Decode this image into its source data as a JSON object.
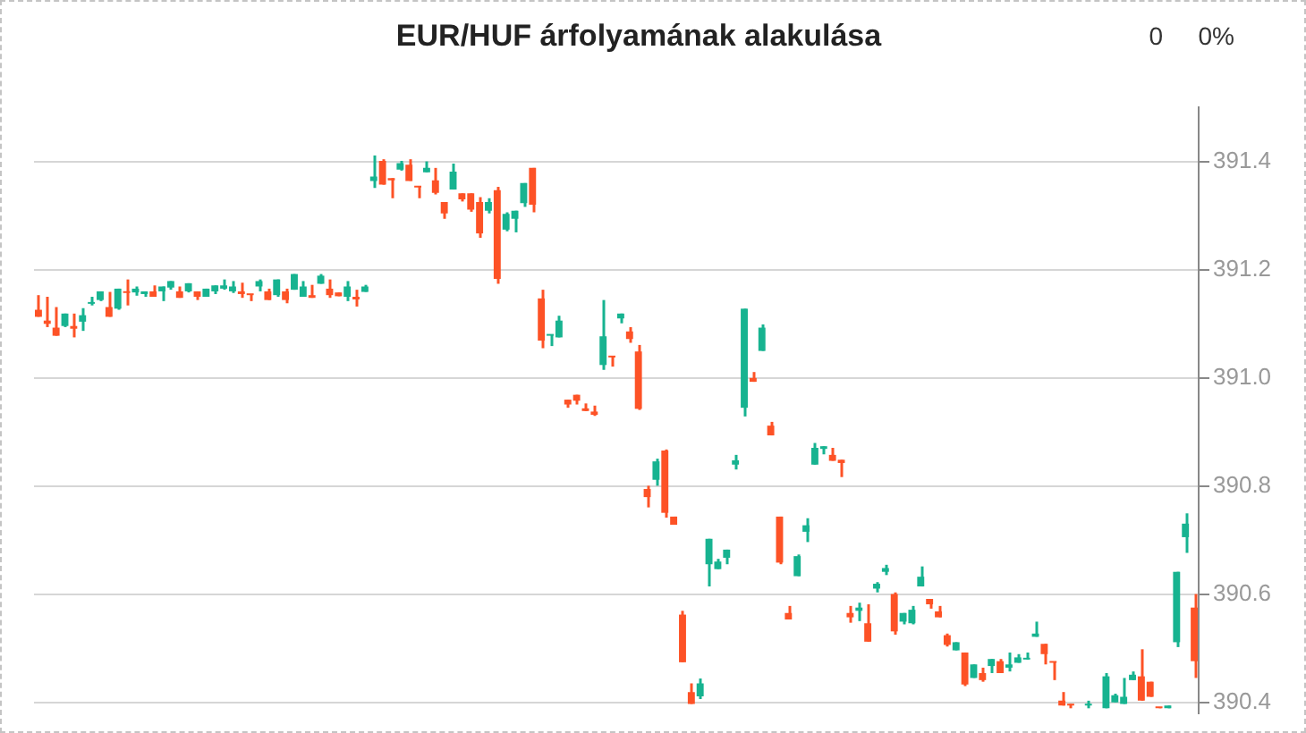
{
  "chart_data": {
    "type": "candlestick",
    "title": "EUR/HUF árfolyamának alakulása",
    "annotations": [
      "0",
      "0%"
    ],
    "categories": [
      null,
      null,
      null,
      null,
      null,
      null,
      null,
      null,
      null,
      null,
      null,
      null,
      null,
      null,
      null,
      null,
      null,
      null,
      null,
      null,
      null,
      null,
      null,
      null,
      null,
      null,
      null,
      null,
      null,
      null,
      null,
      null,
      null,
      null,
      null,
      null,
      null,
      null,
      null,
      null,
      null,
      null,
      null,
      null,
      null,
      null,
      null,
      null,
      null,
      null,
      null,
      null,
      null,
      null,
      null,
      null,
      null,
      null,
      null,
      null,
      null,
      null,
      null,
      null,
      null,
      null,
      null,
      null,
      null,
      null,
      null,
      null,
      null,
      null,
      null,
      null,
      null,
      null,
      null,
      null,
      null,
      null,
      null,
      null,
      null,
      null,
      null,
      null,
      null,
      null,
      null,
      null,
      null,
      null,
      null,
      null,
      null,
      null,
      null,
      null,
      null,
      null,
      null,
      null,
      null,
      null,
      null,
      null,
      null,
      null,
      null,
      null,
      null,
      null,
      null,
      null,
      null,
      null,
      null,
      null,
      null,
      null,
      null,
      null,
      null,
      null,
      null,
      null,
      null,
      null,
      null,
      null
    ],
    "ohlc": [
      [
        391.126,
        391.153,
        391.113,
        391.113
      ],
      [
        391.106,
        391.15,
        391.094,
        391.1
      ],
      [
        391.093,
        391.131,
        391.078,
        391.078
      ],
      [
        391.096,
        391.119,
        391.094,
        391.119
      ],
      [
        391.096,
        391.119,
        391.075,
        391.091
      ],
      [
        391.104,
        391.129,
        391.087,
        391.116
      ],
      [
        391.137,
        391.15,
        391.134,
        391.14
      ],
      [
        391.144,
        391.16,
        391.142,
        391.16
      ],
      [
        391.131,
        391.159,
        391.113,
        391.113
      ],
      [
        391.128,
        391.165,
        391.126,
        391.165
      ],
      [
        391.16,
        391.182,
        391.134,
        391.157
      ],
      [
        391.158,
        391.169,
        391.152,
        391.165
      ],
      [
        391.155,
        391.16,
        391.15,
        391.16
      ],
      [
        391.16,
        391.171,
        391.15,
        391.15
      ],
      [
        391.16,
        391.169,
        391.142,
        391.169
      ],
      [
        391.167,
        391.179,
        391.163,
        391.179
      ],
      [
        391.16,
        391.169,
        391.148,
        391.148
      ],
      [
        391.16,
        391.175,
        391.158,
        391.175
      ],
      [
        391.16,
        391.16,
        391.144,
        391.15
      ],
      [
        391.15,
        391.165,
        391.15,
        391.165
      ],
      [
        391.16,
        391.171,
        391.155,
        391.171
      ],
      [
        391.165,
        391.182,
        391.163,
        391.171
      ],
      [
        391.16,
        391.179,
        391.157,
        391.169
      ],
      [
        391.16,
        391.176,
        391.148,
        391.155
      ],
      [
        391.155,
        391.155,
        391.142,
        391.153
      ],
      [
        391.169,
        391.182,
        391.16,
        391.179
      ],
      [
        391.16,
        391.165,
        391.144,
        391.144
      ],
      [
        391.153,
        391.182,
        391.15,
        391.182
      ],
      [
        391.16,
        391.165,
        391.138,
        391.144
      ],
      [
        391.163,
        391.192,
        391.163,
        391.192
      ],
      [
        391.15,
        391.179,
        391.15,
        391.169
      ],
      [
        391.153,
        391.172,
        391.148,
        391.148
      ],
      [
        391.174,
        391.192,
        391.174,
        391.189
      ],
      [
        391.165,
        391.182,
        391.148,
        391.153
      ],
      [
        391.158,
        391.158,
        391.151,
        391.151
      ],
      [
        391.15,
        391.179,
        391.142,
        391.169
      ],
      [
        391.15,
        391.163,
        391.132,
        391.145
      ],
      [
        391.159,
        391.172,
        391.159,
        391.169
      ],
      [
        391.364,
        391.411,
        391.351,
        391.372
      ],
      [
        391.401,
        391.404,
        391.357,
        391.357
      ],
      [
        391.369,
        391.369,
        391.332,
        391.365
      ],
      [
        391.385,
        391.401,
        391.383,
        391.397
      ],
      [
        391.394,
        391.404,
        391.364,
        391.364
      ],
      [
        391.354,
        391.354,
        391.332,
        391.352
      ],
      [
        391.38,
        391.4,
        391.38,
        391.388
      ],
      [
        391.365,
        391.388,
        391.339,
        391.342
      ],
      [
        391.325,
        391.325,
        391.294,
        391.304
      ],
      [
        391.348,
        391.396,
        391.348,
        391.381
      ],
      [
        391.341,
        391.341,
        391.326,
        391.33
      ],
      [
        391.341,
        391.341,
        391.307,
        391.311
      ],
      [
        391.325,
        391.334,
        391.259,
        391.267
      ],
      [
        391.309,
        391.332,
        391.304,
        391.325
      ],
      [
        391.347,
        391.353,
        391.174,
        391.183
      ],
      [
        391.274,
        391.306,
        391.271,
        391.303
      ],
      [
        391.294,
        391.309,
        391.269,
        391.309
      ],
      [
        391.323,
        391.36,
        391.316,
        391.36
      ],
      [
        391.388,
        391.388,
        391.306,
        391.32
      ],
      [
        391.147,
        391.163,
        391.055,
        391.069
      ],
      [
        391.078,
        391.08,
        391.059,
        391.08
      ],
      [
        391.075,
        391.115,
        391.075,
        391.106
      ],
      [
        390.96,
        390.96,
        390.945,
        390.951
      ],
      [
        390.969,
        390.969,
        390.951,
        390.958
      ],
      [
        390.944,
        390.953,
        390.939,
        390.939
      ],
      [
        390.938,
        390.949,
        390.93,
        390.932
      ],
      [
        391.024,
        391.144,
        391.015,
        391.077
      ],
      [
        391.04,
        391.04,
        391.021,
        391.038
      ],
      [
        391.11,
        391.119,
        391.101,
        391.119
      ],
      [
        391.086,
        391.094,
        391.065,
        391.072
      ],
      [
        391.049,
        391.061,
        390.941,
        390.943
      ],
      [
        390.795,
        390.801,
        390.761,
        390.78
      ],
      [
        390.812,
        390.851,
        390.801,
        390.846
      ],
      [
        390.866,
        390.868,
        390.742,
        390.751
      ],
      [
        390.744,
        390.744,
        390.729,
        390.729
      ],
      [
        390.563,
        390.57,
        390.475,
        390.475
      ],
      [
        390.42,
        390.436,
        390.398,
        390.398
      ],
      [
        390.412,
        390.445,
        390.407,
        390.436
      ],
      [
        390.656,
        390.703,
        390.615,
        390.703
      ],
      [
        390.647,
        390.666,
        390.647,
        390.661
      ],
      [
        390.668,
        390.683,
        390.656,
        390.683
      ],
      [
        390.84,
        390.858,
        390.831,
        390.848
      ],
      [
        390.945,
        391.128,
        390.929,
        391.128
      ],
      [
        391.0,
        391.011,
        390.993,
        390.993
      ],
      [
        391.05,
        391.099,
        391.05,
        391.093
      ],
      [
        390.912,
        390.919,
        390.894,
        390.894
      ],
      [
        390.744,
        390.744,
        390.656,
        390.659
      ],
      [
        390.566,
        390.579,
        390.554,
        390.554
      ],
      [
        390.634,
        390.674,
        390.634,
        390.671
      ],
      [
        390.716,
        390.741,
        390.697,
        390.728
      ],
      [
        390.84,
        390.88,
        390.84,
        390.871
      ],
      [
        390.869,
        390.874,
        390.859,
        390.874
      ],
      [
        390.858,
        390.871,
        390.847,
        390.847
      ],
      [
        390.849,
        390.849,
        390.817,
        390.843
      ],
      [
        390.566,
        390.579,
        390.548,
        390.558
      ],
      [
        390.57,
        390.585,
        390.551,
        390.576
      ],
      [
        390.547,
        390.582,
        390.513,
        390.513
      ],
      [
        390.611,
        390.623,
        390.604,
        390.62
      ],
      [
        390.642,
        390.655,
        390.636,
        390.649
      ],
      [
        390.601,
        390.604,
        390.526,
        390.532
      ],
      [
        390.55,
        390.566,
        390.545,
        390.566
      ],
      [
        390.547,
        390.579,
        390.545,
        390.572
      ],
      [
        390.615,
        390.652,
        390.615,
        390.633
      ],
      [
        390.592,
        390.592,
        390.574,
        390.582
      ],
      [
        390.569,
        390.579,
        390.558,
        390.558
      ],
      [
        390.525,
        390.528,
        390.504,
        390.507
      ],
      [
        390.497,
        390.512,
        390.497,
        390.512
      ],
      [
        390.493,
        390.493,
        390.431,
        390.434
      ],
      [
        390.446,
        390.471,
        390.446,
        390.471
      ],
      [
        390.455,
        390.465,
        390.439,
        390.442
      ],
      [
        390.468,
        390.481,
        390.455,
        390.481
      ],
      [
        390.477,
        390.481,
        390.455,
        390.455
      ],
      [
        390.465,
        390.493,
        390.458,
        390.471
      ],
      [
        390.474,
        390.49,
        390.474,
        390.484
      ],
      [
        390.48,
        390.493,
        390.48,
        390.483
      ],
      [
        390.522,
        390.55,
        390.522,
        390.528
      ],
      [
        390.509,
        390.509,
        390.471,
        390.49
      ],
      [
        390.476,
        390.476,
        390.442,
        390.474
      ],
      [
        390.404,
        390.42,
        390.395,
        390.395
      ],
      [
        390.398,
        390.398,
        390.39,
        390.395
      ],
      null,
      [
        390.395,
        390.404,
        390.39,
        390.398
      ],
      null,
      [
        390.39,
        390.455,
        390.39,
        390.449
      ],
      [
        390.401,
        390.417,
        390.401,
        390.414
      ],
      [
        390.398,
        390.446,
        390.398,
        390.411
      ],
      [
        390.442,
        390.458,
        390.442,
        390.452
      ],
      [
        390.449,
        390.499,
        390.404,
        390.404
      ],
      [
        390.439,
        390.439,
        390.411,
        390.411
      ],
      [
        390.392,
        390.392,
        390.39,
        390.39
      ],
      [
        390.39,
        390.395,
        390.39,
        390.395
      ],
      [
        390.512,
        390.642,
        390.503,
        390.642
      ],
      [
        390.706,
        390.75,
        390.677,
        390.731
      ],
      [
        390.576,
        390.601,
        390.446,
        390.477
      ]
    ],
    "colors": [
      "#fd5226",
      "#fd5226",
      "#fd5226",
      "#17b390",
      "#fd5226",
      "#17b390",
      "#17b390",
      "#17b390",
      "#fd5226",
      "#17b390",
      "#fd5226",
      "#17b390",
      "#17b390",
      "#fd5226",
      "#17b390",
      "#17b390",
      "#fd5226",
      "#17b390",
      "#fd5226",
      "#17b390",
      "#17b390",
      "#17b390",
      "#17b390",
      "#fd5226",
      "#fd5226",
      "#17b390",
      "#fd5226",
      "#17b390",
      "#fd5226",
      "#17b390",
      "#17b390",
      "#fd5226",
      "#17b390",
      "#fd5226",
      "#fd5226",
      "#17b390",
      "#fd5226",
      "#17b390",
      "#17b390",
      "#fd5226",
      "#fd5226",
      "#17b390",
      "#fd5226",
      "#fd5226",
      "#17b390",
      "#fd5226",
      "#fd5226",
      "#17b390",
      "#fd5226",
      "#fd5226",
      "#fd5226",
      "#17b390",
      "#fd5226",
      "#17b390",
      "#17b390",
      "#17b390",
      "#fd5226",
      "#fd5226",
      "#17b390",
      "#17b390",
      "#fd5226",
      "#fd5226",
      "#fd5226",
      "#fd5226",
      "#17b390",
      "#fd5226",
      "#17b390",
      "#fd5226",
      "#fd5226",
      "#fd5226",
      "#17b390",
      "#fd5226",
      "#fd5226",
      "#fd5226",
      "#fd5226",
      "#17b390",
      "#17b390",
      "#17b390",
      "#17b390",
      "#17b390",
      "#17b390",
      "#fd5226",
      "#17b390",
      "#fd5226",
      "#fd5226",
      "#fd5226",
      "#17b390",
      "#17b390",
      "#17b390",
      "#17b390",
      "#fd5226",
      "#fd5226",
      "#fd5226",
      "#17b390",
      "#fd5226",
      "#17b390",
      "#17b390",
      "#fd5226",
      "#17b390",
      "#17b390",
      "#17b390",
      "#fd5226",
      "#fd5226",
      "#fd5226",
      "#17b390",
      "#fd5226",
      "#17b390",
      "#fd5226",
      "#17b390",
      "#fd5226",
      "#17b390",
      "#17b390",
      "#17b390",
      "#17b390",
      "#fd5226",
      "#fd5226",
      "#fd5226",
      "#fd5226",
      null,
      "#17b390",
      null,
      "#17b390",
      "#17b390",
      "#17b390",
      "#17b390",
      "#fd5226",
      "#fd5226",
      "#fd5226",
      "#17b390",
      "#17b390",
      "#17b390",
      "#fd5226"
    ],
    "ylim": [
      390.38,
      391.5
    ],
    "yticks": [
      390.4,
      390.6,
      390.8,
      {
        "value": 391,
        "label": "391.0"
      },
      391.2,
      391.4
    ],
    "grid": "y",
    "tick_labels": "y"
  }
}
